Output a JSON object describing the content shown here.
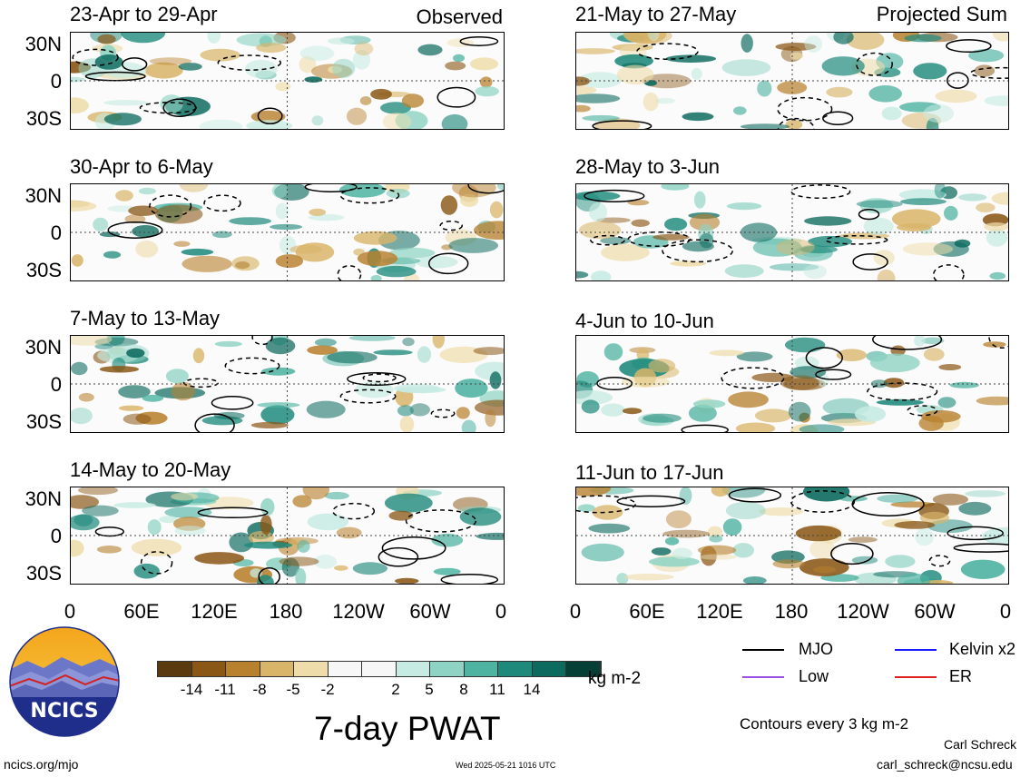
{
  "columns": {
    "left_tag": "Observed",
    "right_tag": "Projected Sum"
  },
  "panels_left": [
    {
      "title": "23-Apr to 29-Apr"
    },
    {
      "title": "30-Apr to 6-May"
    },
    {
      "title": "7-May to 13-May"
    },
    {
      "title": "14-May to 20-May"
    }
  ],
  "panels_right": [
    {
      "title": "21-May to 27-May"
    },
    {
      "title": "28-May to 3-Jun"
    },
    {
      "title": "4-Jun to 10-Jun"
    },
    {
      "title": "11-Jun to 17-Jun"
    }
  ],
  "lat_labels": [
    "30N",
    "0",
    "30S"
  ],
  "lon_labels": [
    "0",
    "60E",
    "120E",
    "180",
    "120W",
    "60W",
    "0"
  ],
  "colorbar": {
    "colors": [
      "#5a3a0e",
      "#8a5716",
      "#b8812e",
      "#d9b56a",
      "#eedcaa",
      "#f7f7f7",
      "#f7f7f7",
      "#c6ebe2",
      "#8ed3c3",
      "#4fb3a2",
      "#1f8a7c",
      "#0c6a5e",
      "#063f36"
    ],
    "ticks": [
      "-14",
      "-11",
      "-8",
      "-5",
      "-2",
      "2",
      "5",
      "8",
      "11",
      "14"
    ],
    "units": "kg m-2"
  },
  "main_title": "7-day PWAT",
  "logo_text": "NCICS",
  "legend": {
    "items": [
      {
        "label": "MJO",
        "color": "#000000"
      },
      {
        "label": "Kelvin x2",
        "color": "#1a1aff"
      },
      {
        "label": "Low",
        "color": "#9b4fe0"
      },
      {
        "label": "ER",
        "color": "#e02020"
      }
    ],
    "contour_note": "Contours every 3 kg m-2"
  },
  "footer": {
    "left": "ncics.org/mjo",
    "center": "Wed 2025-05-21 1016 UTC",
    "author": "Carl Schreck",
    "email": "carl_schreck@ncsu.edu"
  }
}
